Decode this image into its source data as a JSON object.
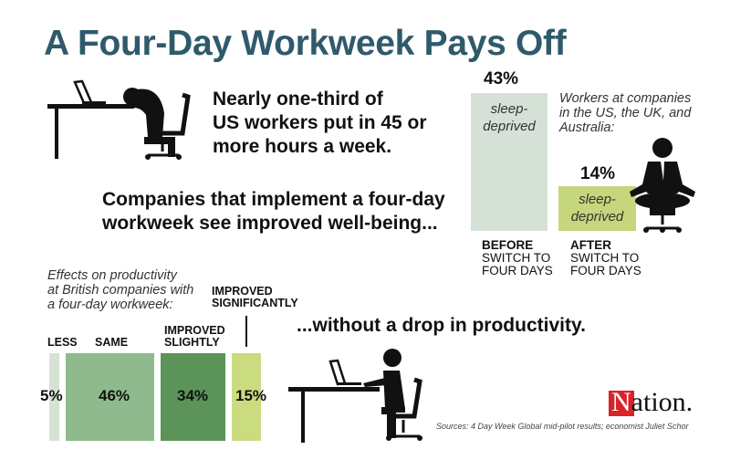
{
  "title": "A Four-Day Workweek Pays Off",
  "intro": [
    "Nearly one-third of",
    "US workers put in 45 or",
    "more hours a week."
  ],
  "wellbeing": [
    "Companies that implement a four-day",
    "workweek see improved well-being..."
  ],
  "productivity_headline": "...without a drop in productivity.",
  "sources": "Sources: 4 Day Week Global mid-pilot results; economist Juliet Schor",
  "logo_text": "The Nation.",
  "chart_data": [
    {
      "type": "bar",
      "title": "Workers at companies in the US, the UK, and Australia:",
      "title_lines": [
        "Workers at companies",
        "in the US, the UK, and",
        "Australia:"
      ],
      "categories": [
        "BEFORE SWITCH TO FOUR DAYS",
        "AFTER SWITCH TO FOUR DAYS"
      ],
      "cat_lines": [
        [
          "BEFORE",
          "SWITCH TO",
          "FOUR DAYS"
        ],
        [
          "AFTER",
          "SWITCH TO",
          "FOUR DAYS"
        ]
      ],
      "values": [
        43,
        14
      ],
      "value_labels": [
        "43%",
        "14%"
      ],
      "bar_text": [
        "sleep-",
        "deprived"
      ],
      "colors": [
        "#d5e1d6",
        "#c6d67c"
      ],
      "ylim": [
        0,
        43
      ]
    },
    {
      "type": "bar",
      "title": "Effects on productivity at British companies with a four-day workweek:",
      "title_lines": [
        "Effects on productivity",
        "at British companies with",
        "a four-day workweek:"
      ],
      "categories": [
        "LESS",
        "SAME",
        "IMPROVED SLIGHTLY",
        "IMPROVED SIGNIFICANTLY"
      ],
      "cat_lines": [
        [
          "LESS"
        ],
        [
          "SAME"
        ],
        [
          "IMPROVED",
          "SLIGHTLY"
        ],
        [
          "IMPROVED",
          "SIGNIFICANTLY"
        ]
      ],
      "values": [
        5,
        46,
        34,
        15
      ],
      "value_labels": [
        "5%",
        "46%",
        "34%",
        "15%"
      ],
      "colors": [
        "#d5e2d4",
        "#8fba8d",
        "#5b9359",
        "#cbdc80"
      ]
    }
  ]
}
